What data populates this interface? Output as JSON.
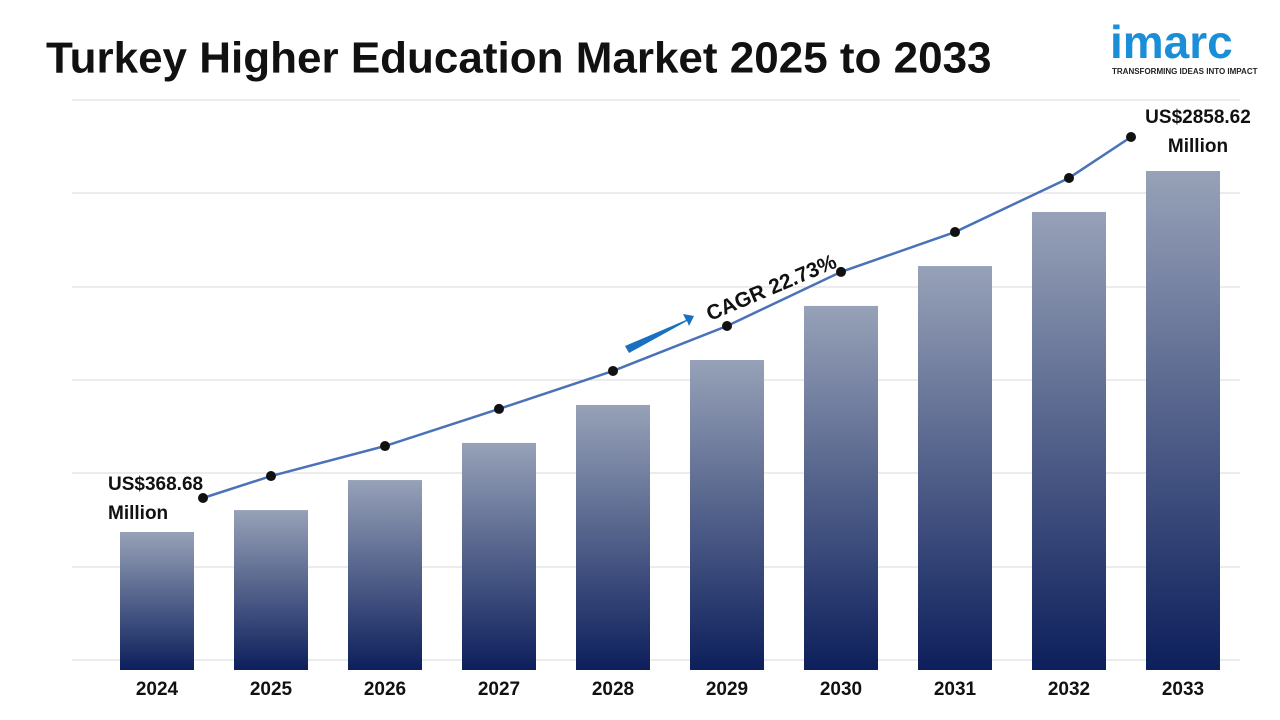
{
  "chart_data": {
    "type": "bar",
    "title": "Turkey Higher Education Market 2025 to 2033",
    "logo": {
      "name": "imarc",
      "tagline": "TRANSFORMING IDEAS INTO IMPACT"
    },
    "annotation": "CAGR 22.73%",
    "categories": [
      "2024",
      "2025",
      "2026",
      "2027",
      "2028",
      "2029",
      "2030",
      "2031",
      "2032",
      "2033"
    ],
    "values": [
      368.68,
      520,
      727,
      983,
      1245,
      1555,
      1928,
      2203,
      2576,
      2858.62
    ],
    "value_labels": [
      "US$368.68 Million",
      null,
      null,
      null,
      null,
      null,
      null,
      null,
      null,
      "US$2858.62 Million"
    ],
    "color": "#0d1f5c",
    "line_color": "#4a72b8",
    "grid": true
  }
}
